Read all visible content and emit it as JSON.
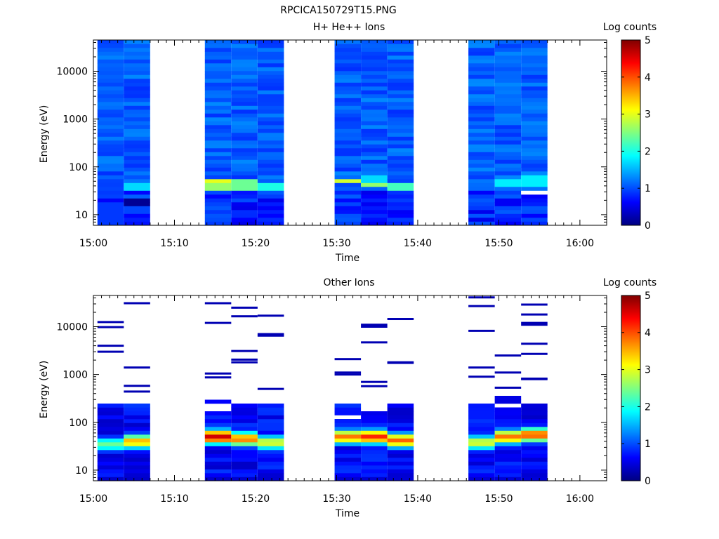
{
  "title": "RPCICA150729T15.PNG",
  "colorscale": [
    "#000080",
    "#0000ff",
    "#0080ff",
    "#00ffff",
    "#80ff80",
    "#ffff00",
    "#ff8000",
    "#ff0000",
    "#800000"
  ],
  "chart_data": [
    {
      "type": "heatmap",
      "title": "H+ He++ Ions",
      "xlabel": "Time",
      "ylabel": "Energy (eV)",
      "yscale": "log",
      "ylim": [
        6,
        45000
      ],
      "xticks": [
        "15:00",
        "15:10",
        "15:20",
        "15:30",
        "15:40",
        "15:50",
        "16:00"
      ],
      "yticks": [
        "10",
        "100",
        "1000",
        "10000"
      ],
      "colorbar": {
        "label": "Log counts",
        "range": [
          0,
          5
        ],
        "ticks": [
          "0",
          "1",
          "2",
          "3",
          "4",
          "5"
        ]
      },
      "time_blocks": [
        {
          "start": "15:00:30",
          "end": "15:03:45"
        },
        {
          "start": "15:03:45",
          "end": "15:07:00"
        },
        {
          "start": "15:13:45",
          "end": "15:17:00"
        },
        {
          "start": "15:17:00",
          "end": "15:20:15"
        },
        {
          "start": "15:20:15",
          "end": "15:23:30"
        },
        {
          "start": "15:29:45",
          "end": "15:33:00"
        },
        {
          "start": "15:33:00",
          "end": "15:36:15"
        },
        {
          "start": "15:36:15",
          "end": "15:39:30"
        },
        {
          "start": "15:46:15",
          "end": "15:49:30"
        },
        {
          "start": "15:49:30",
          "end": "15:52:45"
        },
        {
          "start": "15:52:45",
          "end": "15:56:00"
        }
      ],
      "features": [
        {
          "block": 0,
          "emin": 6,
          "emax": 20,
          "level": 0.9
        },
        {
          "block": 1,
          "emin": 16,
          "emax": 22,
          "level": 0.1
        },
        {
          "block": 1,
          "emin": 30,
          "emax": 45,
          "level": 1.7
        },
        {
          "block": 2,
          "emin": 45,
          "emax": 58,
          "level": 3.0
        },
        {
          "block": 2,
          "emin": 35,
          "emax": 45,
          "level": 2.6
        },
        {
          "block": 3,
          "emin": 30,
          "emax": 58,
          "level": 2.4
        },
        {
          "block": 4,
          "emin": 35,
          "emax": 45,
          "level": 2.0
        },
        {
          "block": 5,
          "emin": 48,
          "emax": 58,
          "level": 2.9
        },
        {
          "block": 6,
          "emin": 40,
          "emax": 48,
          "level": 2.6
        },
        {
          "block": 6,
          "emin": 48,
          "emax": 68,
          "level": 1.7
        },
        {
          "block": 7,
          "emin": 35,
          "emax": 48,
          "level": 2.2
        },
        {
          "block": 9,
          "emin": 38,
          "emax": 58,
          "level": 1.8
        },
        {
          "block": 10,
          "emin": 40,
          "emax": 68,
          "level": 1.8
        },
        {
          "block": 10,
          "emin": 27,
          "emax": 31,
          "level": 5.5
        }
      ]
    },
    {
      "type": "heatmap",
      "title": "Other Ions",
      "xlabel": "Time",
      "ylabel": "Energy (eV)",
      "yscale": "log",
      "ylim": [
        6,
        45000
      ],
      "xticks": [
        "15:00",
        "15:10",
        "15:20",
        "15:30",
        "15:40",
        "15:50",
        "16:00"
      ],
      "yticks": [
        "10",
        "100",
        "1000",
        "10000"
      ],
      "colorbar": {
        "label": "Log counts",
        "range": [
          0,
          5
        ],
        "ticks": [
          "0",
          "1",
          "2",
          "3",
          "4",
          "5"
        ]
      },
      "time_blocks": [
        {
          "start": "15:00:30",
          "end": "15:03:45"
        },
        {
          "start": "15:03:45",
          "end": "15:07:00"
        },
        {
          "start": "15:13:45",
          "end": "15:17:00"
        },
        {
          "start": "15:17:00",
          "end": "15:20:15"
        },
        {
          "start": "15:20:15",
          "end": "15:23:30"
        },
        {
          "start": "15:29:45",
          "end": "15:33:00"
        },
        {
          "start": "15:33:00",
          "end": "15:36:15"
        },
        {
          "start": "15:36:15",
          "end": "15:39:30"
        },
        {
          "start": "15:46:15",
          "end": "15:49:30"
        },
        {
          "start": "15:49:30",
          "end": "15:52:45"
        },
        {
          "start": "15:52:45",
          "end": "15:56:00"
        }
      ],
      "core": [
        {
          "block": 0,
          "emax": 270
        },
        {
          "block": 1,
          "emax": 300
        },
        {
          "block": 2,
          "emax": 300
        },
        {
          "block": 3,
          "emax": 260
        },
        {
          "block": 4,
          "emax": 270
        },
        {
          "block": 5,
          "emax": 230
        },
        {
          "block": 6,
          "emax": 170
        },
        {
          "block": 7,
          "emax": 260
        },
        {
          "block": 8,
          "emax": 270
        },
        {
          "block": 9,
          "emax": 350
        },
        {
          "block": 10,
          "emax": 270
        }
      ],
      "peaks": [
        {
          "block": 0,
          "energy": 35,
          "level": 2.4
        },
        {
          "block": 1,
          "energy": 40,
          "level": 3.5
        },
        {
          "block": 2,
          "energy": 50,
          "level": 4.6
        },
        {
          "block": 3,
          "energy": 45,
          "level": 3.8
        },
        {
          "block": 4,
          "energy": 38,
          "level": 3.0
        },
        {
          "block": 5,
          "energy": 50,
          "level": 3.8
        },
        {
          "block": 6,
          "energy": 50,
          "level": 4.2
        },
        {
          "block": 7,
          "energy": 42,
          "level": 3.9
        },
        {
          "block": 8,
          "energy": 38,
          "level": 3.0
        },
        {
          "block": 9,
          "energy": 50,
          "level": 3.8
        },
        {
          "block": 10,
          "energy": 55,
          "level": 4.0
        }
      ],
      "isolated_counts": [
        {
          "block": 0,
          "energies": [
            12500,
            9800,
            4000,
            3000
          ]
        },
        {
          "block": 1,
          "energies": [
            31000,
            1400,
            580,
            440
          ]
        },
        {
          "block": 2,
          "energies": [
            31000,
            12000,
            1050,
            870
          ]
        },
        {
          "block": 3,
          "energies": [
            25000,
            16500,
            3100,
            2050,
            1800
          ]
        },
        {
          "block": 4,
          "energies": [
            17000,
            7000,
            6500,
            500
          ]
        },
        {
          "block": 5,
          "energies": [
            2100,
            1100,
            1000
          ]
        },
        {
          "block": 6,
          "energies": [
            11000,
            10000,
            4700,
            700,
            570
          ]
        },
        {
          "block": 7,
          "energies": [
            14500,
            1800,
            1750
          ]
        },
        {
          "block": 8,
          "energies": [
            41000,
            27000,
            8200,
            1400,
            900
          ]
        },
        {
          "block": 9,
          "energies": [
            2500,
            1100,
            530
          ]
        },
        {
          "block": 10,
          "energies": [
            29000,
            18000,
            12000,
            11000,
            4400,
            2700,
            820,
            800
          ]
        }
      ]
    }
  ]
}
